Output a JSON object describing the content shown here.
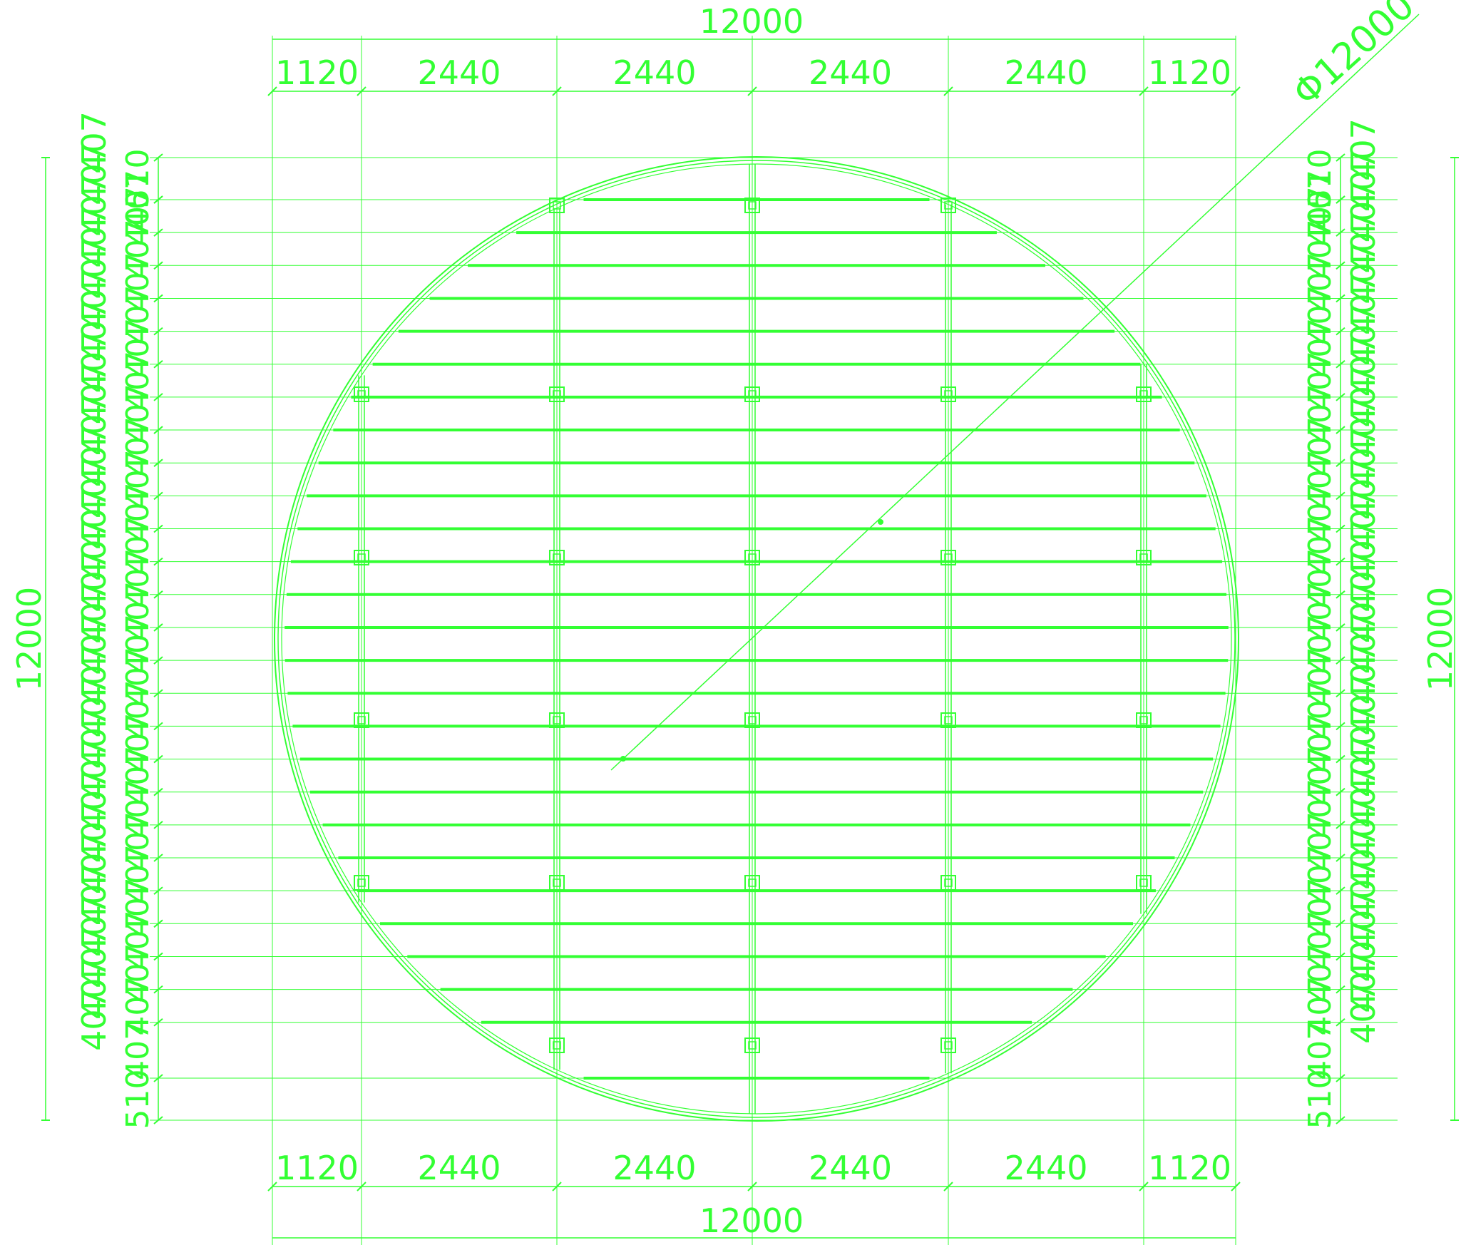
{
  "colors": {
    "line": "#33ff33",
    "bg": "#ffffff"
  },
  "diameter_label": "Φ12000",
  "overall": {
    "width_label": "12000",
    "height_label": "12000"
  },
  "column_dims": [
    "1120",
    "2440",
    "2440",
    "2440",
    "2440",
    "1120"
  ],
  "left_outer_dims": [
    "407",
    "407",
    "407",
    "407",
    "407",
    "407",
    "407",
    "407",
    "407",
    "407",
    "407",
    "407",
    "407",
    "407",
    "407",
    "407",
    "407",
    "407",
    "407",
    "407",
    "407",
    "407",
    "407",
    "407",
    "407",
    "407",
    "407",
    "407",
    "407"
  ],
  "left_inner_dims": [
    "510",
    "407",
    "407",
    "407",
    "407",
    "407",
    "407",
    "407",
    "407",
    "407",
    "407",
    "407",
    "407",
    "407",
    "407",
    "407",
    "407",
    "407",
    "407",
    "407",
    "407",
    "407",
    "407",
    "407",
    "407",
    "407",
    "407",
    "407",
    "510"
  ],
  "right_inner_dims": [
    "510",
    "407",
    "407",
    "407",
    "407",
    "407",
    "407",
    "407",
    "407",
    "407",
    "407",
    "407",
    "407",
    "407",
    "407",
    "407",
    "407",
    "407",
    "407",
    "407",
    "407",
    "407",
    "407",
    "407",
    "407",
    "407",
    "407",
    "407",
    "510"
  ],
  "right_outer_dims": [
    "407",
    "407",
    "407",
    "407",
    "407",
    "407",
    "407",
    "407",
    "407",
    "407",
    "407",
    "407",
    "407",
    "407",
    "407",
    "407",
    "407",
    "407",
    "407",
    "407",
    "407",
    "407",
    "407",
    "407",
    "407",
    "407",
    "407",
    "407",
    "407"
  ]
}
